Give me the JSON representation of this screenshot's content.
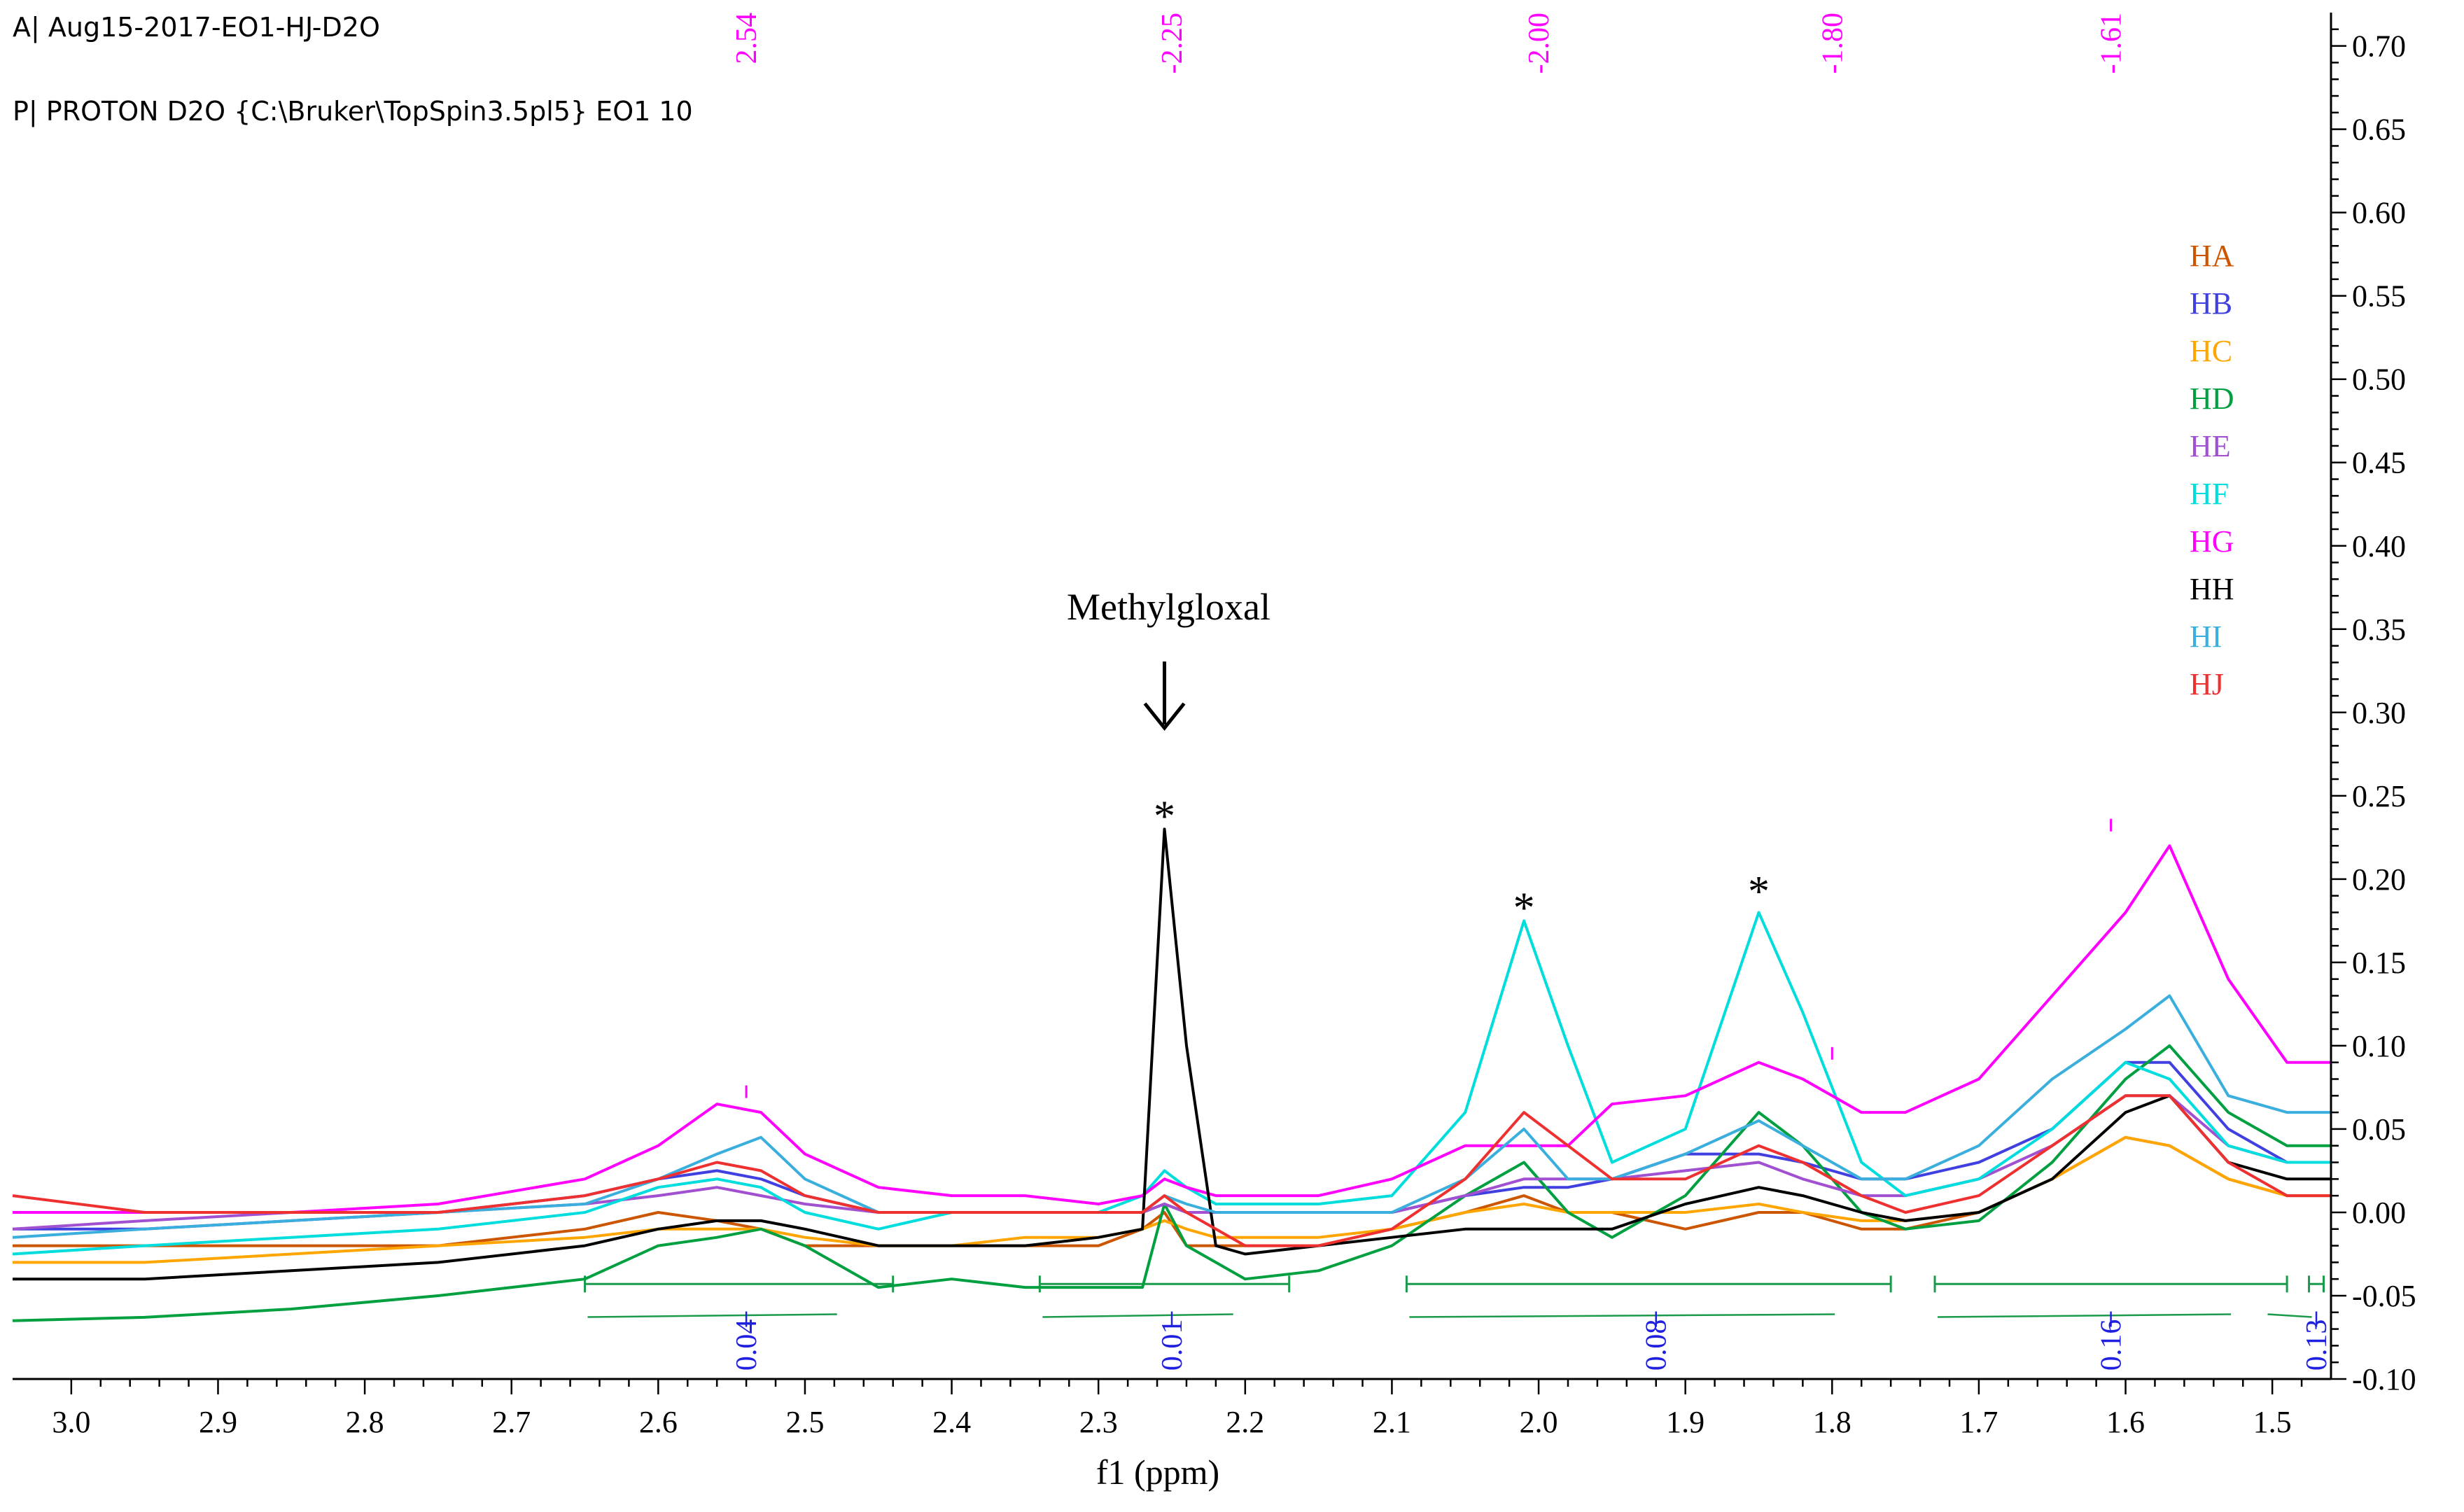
{
  "header": {
    "line1": "A| Aug15-2017-EO1-HJ-D2O",
    "line2": "P| PROTON D2O {C:\\Bruker\\TopSpin3.5pl5} EO1 10"
  },
  "chart_data": {
    "type": "line",
    "title": "",
    "xlabel": "f1 (ppm)",
    "ylabel": "",
    "xlim": [
      3.04,
      1.46
    ],
    "ylim": [
      -0.1,
      0.72
    ],
    "x_ticks": [
      "3.0",
      "2.9",
      "2.8",
      "2.7",
      "2.6",
      "2.5",
      "2.4",
      "2.3",
      "2.2",
      "2.1",
      "2.0",
      "1.9",
      "1.8",
      "1.7",
      "1.6",
      "1.5"
    ],
    "x_tick_values": [
      3.0,
      2.9,
      2.8,
      2.7,
      2.6,
      2.5,
      2.4,
      2.3,
      2.2,
      2.1,
      2.0,
      1.9,
      1.8,
      1.7,
      1.6,
      1.5
    ],
    "y_ticks": [
      "0.70",
      "0.65",
      "0.60",
      "0.55",
      "0.50",
      "0.45",
      "0.40",
      "0.35",
      "0.30",
      "0.25",
      "0.20",
      "0.15",
      "0.10",
      "0.05",
      "0.00",
      "-0.05",
      "-0.10"
    ],
    "y_tick_values": [
      0.7,
      0.65,
      0.6,
      0.55,
      0.5,
      0.45,
      0.4,
      0.35,
      0.3,
      0.25,
      0.2,
      0.15,
      0.1,
      0.05,
      0.0,
      -0.05,
      -0.1
    ],
    "peak_labels": [
      {
        "ppm": 2.54,
        "label": "2.54"
      },
      {
        "ppm": 2.25,
        "label": "-2.25"
      },
      {
        "ppm": 2.0,
        "label": "-2.00"
      },
      {
        "ppm": 1.8,
        "label": "-1.80"
      },
      {
        "ppm": 1.61,
        "label": "-1.61"
      }
    ],
    "integrals": [
      {
        "from": 2.65,
        "to": 2.44,
        "label": "0.04",
        "label_ppm": 2.54
      },
      {
        "from": 2.34,
        "to": 2.17,
        "label": "0.01",
        "label_ppm": 2.25
      },
      {
        "from": 2.09,
        "to": 1.76,
        "label": "0.08",
        "label_ppm": 1.92
      },
      {
        "from": 1.73,
        "to": 1.49,
        "label": "0.16",
        "label_ppm": 1.61
      },
      {
        "from": 1.475,
        "to": 1.465,
        "label": "0.13",
        "label_ppm": 1.47
      }
    ],
    "annotations": {
      "methylglyoxal": {
        "text": "Methylgloxal",
        "ppm": 2.255
      },
      "stars": [
        {
          "text": "*",
          "ppm": 2.255,
          "y": 0.245
        },
        {
          "text": "*",
          "ppm": 2.01,
          "y": 0.19
        },
        {
          "text": "*",
          "ppm": 1.85,
          "y": 0.2
        }
      ]
    },
    "x": [
      3.04,
      2.95,
      2.85,
      2.75,
      2.65,
      2.6,
      2.56,
      2.53,
      2.5,
      2.45,
      2.4,
      2.35,
      2.3,
      2.27,
      2.255,
      2.24,
      2.22,
      2.2,
      2.15,
      2.1,
      2.05,
      2.01,
      1.98,
      1.95,
      1.9,
      1.85,
      1.82,
      1.78,
      1.75,
      1.7,
      1.65,
      1.6,
      1.57,
      1.53,
      1.49,
      1.46
    ],
    "series": [
      {
        "name": "HA",
        "color": "#cc5500",
        "values": [
          -0.02,
          -0.02,
          -0.02,
          -0.02,
          -0.01,
          0.0,
          -0.005,
          -0.01,
          -0.02,
          -0.02,
          -0.02,
          -0.02,
          -0.02,
          -0.01,
          0.0,
          -0.02,
          -0.02,
          -0.02,
          -0.02,
          -0.01,
          0.0,
          0.01,
          0.0,
          0.0,
          -0.01,
          0.0,
          0.0,
          -0.01,
          -0.01,
          0.0,
          0.02,
          0.045,
          0.04,
          0.02,
          0.01,
          0.01
        ]
      },
      {
        "name": "HB",
        "color": "#4040e0",
        "values": [
          -0.01,
          -0.01,
          -0.005,
          0.0,
          0.01,
          0.02,
          0.025,
          0.02,
          0.01,
          0.0,
          0.0,
          0.0,
          0.0,
          0.0,
          0.005,
          0.0,
          0.0,
          0.0,
          0.0,
          0.0,
          0.01,
          0.015,
          0.015,
          0.02,
          0.035,
          0.035,
          0.03,
          0.02,
          0.02,
          0.03,
          0.05,
          0.09,
          0.09,
          0.05,
          0.03,
          0.03
        ]
      },
      {
        "name": "HC",
        "color": "#ffa500",
        "values": [
          -0.03,
          -0.03,
          -0.025,
          -0.02,
          -0.015,
          -0.01,
          -0.01,
          -0.01,
          -0.015,
          -0.02,
          -0.02,
          -0.015,
          -0.015,
          -0.01,
          -0.005,
          -0.01,
          -0.015,
          -0.015,
          -0.015,
          -0.01,
          0.0,
          0.005,
          0.0,
          0.0,
          0.0,
          0.005,
          0.0,
          -0.005,
          -0.005,
          0.0,
          0.02,
          0.045,
          0.04,
          0.02,
          0.01,
          0.01
        ]
      },
      {
        "name": "HD",
        "color": "#00a040",
        "values": [
          -0.065,
          -0.063,
          -0.058,
          -0.05,
          -0.04,
          -0.02,
          -0.015,
          -0.01,
          -0.02,
          -0.045,
          -0.04,
          -0.045,
          -0.045,
          -0.045,
          0.005,
          -0.02,
          -0.03,
          -0.04,
          -0.035,
          -0.02,
          0.01,
          0.03,
          0.0,
          -0.015,
          0.01,
          0.06,
          0.04,
          0.0,
          -0.01,
          -0.005,
          0.03,
          0.08,
          0.1,
          0.06,
          0.04,
          0.04
        ]
      },
      {
        "name": "HE",
        "color": "#a050d0",
        "values": [
          -0.01,
          -0.005,
          0.0,
          0.0,
          0.005,
          0.01,
          0.015,
          0.01,
          0.005,
          0.0,
          0.0,
          0.0,
          0.0,
          0.0,
          0.005,
          0.0,
          0.0,
          0.0,
          0.0,
          0.0,
          0.01,
          0.02,
          0.02,
          0.02,
          0.025,
          0.03,
          0.02,
          0.01,
          0.01,
          0.02,
          0.04,
          0.07,
          0.07,
          0.04,
          0.03,
          0.03
        ]
      },
      {
        "name": "HF",
        "color": "#00dddd",
        "values": [
          -0.025,
          -0.02,
          -0.015,
          -0.01,
          0.0,
          0.015,
          0.02,
          0.015,
          0.0,
          -0.01,
          0.0,
          0.0,
          0.0,
          0.01,
          0.025,
          0.015,
          0.005,
          0.005,
          0.005,
          0.01,
          0.06,
          0.175,
          0.1,
          0.03,
          0.05,
          0.18,
          0.12,
          0.03,
          0.01,
          0.02,
          0.05,
          0.09,
          0.08,
          0.04,
          0.03,
          0.03
        ]
      },
      {
        "name": "HG",
        "color": "#ff00ff",
        "values": [
          0.0,
          0.0,
          0.0,
          0.005,
          0.02,
          0.04,
          0.065,
          0.06,
          0.035,
          0.015,
          0.01,
          0.01,
          0.005,
          0.01,
          0.02,
          0.015,
          0.01,
          0.01,
          0.01,
          0.02,
          0.04,
          0.04,
          0.04,
          0.065,
          0.07,
          0.09,
          0.08,
          0.06,
          0.06,
          0.08,
          0.13,
          0.18,
          0.22,
          0.14,
          0.09,
          0.09
        ]
      },
      {
        "name": "HH",
        "color": "#000000",
        "values": [
          -0.04,
          -0.04,
          -0.035,
          -0.03,
          -0.02,
          -0.01,
          -0.005,
          -0.005,
          -0.01,
          -0.02,
          -0.02,
          -0.02,
          -0.015,
          -0.01,
          0.23,
          0.1,
          -0.02,
          -0.025,
          -0.02,
          -0.015,
          -0.01,
          -0.01,
          -0.01,
          -0.01,
          0.005,
          0.015,
          0.01,
          0.0,
          -0.005,
          0.0,
          0.02,
          0.06,
          0.07,
          0.03,
          0.02,
          0.02
        ]
      },
      {
        "name": "HI",
        "color": "#3aaedc",
        "values": [
          -0.015,
          -0.01,
          -0.005,
          0.0,
          0.005,
          0.02,
          0.035,
          0.045,
          0.02,
          0.0,
          0.0,
          0.0,
          0.0,
          0.0,
          0.01,
          0.005,
          0.0,
          0.0,
          0.0,
          0.0,
          0.02,
          0.05,
          0.02,
          0.02,
          0.035,
          0.055,
          0.04,
          0.02,
          0.02,
          0.04,
          0.08,
          0.11,
          0.13,
          0.07,
          0.06,
          0.06
        ]
      },
      {
        "name": "HJ",
        "color": "#ee3030",
        "values": [
          0.01,
          0.0,
          0.0,
          0.0,
          0.01,
          0.02,
          0.03,
          0.025,
          0.01,
          0.0,
          0.0,
          0.0,
          0.0,
          0.0,
          0.01,
          0.0,
          -0.01,
          -0.02,
          -0.02,
          -0.01,
          0.02,
          0.06,
          0.04,
          0.02,
          0.02,
          0.04,
          0.03,
          0.01,
          0.0,
          0.01,
          0.04,
          0.07,
          0.07,
          0.03,
          0.01,
          0.01
        ]
      }
    ]
  }
}
